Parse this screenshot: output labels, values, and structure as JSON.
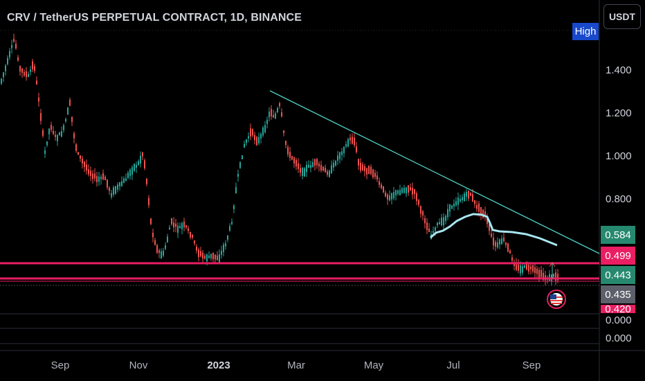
{
  "header": {
    "title": "CRV / TetherUS PERPETUAL CONTRACT, 1D, BINANCE",
    "currency_button": "USDT",
    "high_tag": "High"
  },
  "y_axis": {
    "labels": [
      "1.400",
      "1.200",
      "1.000",
      "0.800",
      "0.000",
      "0.000"
    ]
  },
  "price_tags": [
    {
      "value": "0.584",
      "color": "#26896f"
    },
    {
      "value": "0.499",
      "color": "#e91e63"
    },
    {
      "value": "0.443",
      "color": "#26896f"
    },
    {
      "value": "0.435",
      "color": "#5d606b"
    },
    {
      "value": "0.420",
      "color": "#e91e63"
    }
  ],
  "x_axis": {
    "labels": [
      "Sep",
      "Nov",
      "2023",
      "Mar",
      "May",
      "Jul",
      "Sep"
    ]
  },
  "colors": {
    "up": "#26a69a",
    "down": "#ef5350",
    "trendline": "#4dd0c4",
    "ma": "#a8e6f0",
    "level_line": "#e91e63"
  },
  "icons": {
    "flag": "us-flag-icon"
  }
}
